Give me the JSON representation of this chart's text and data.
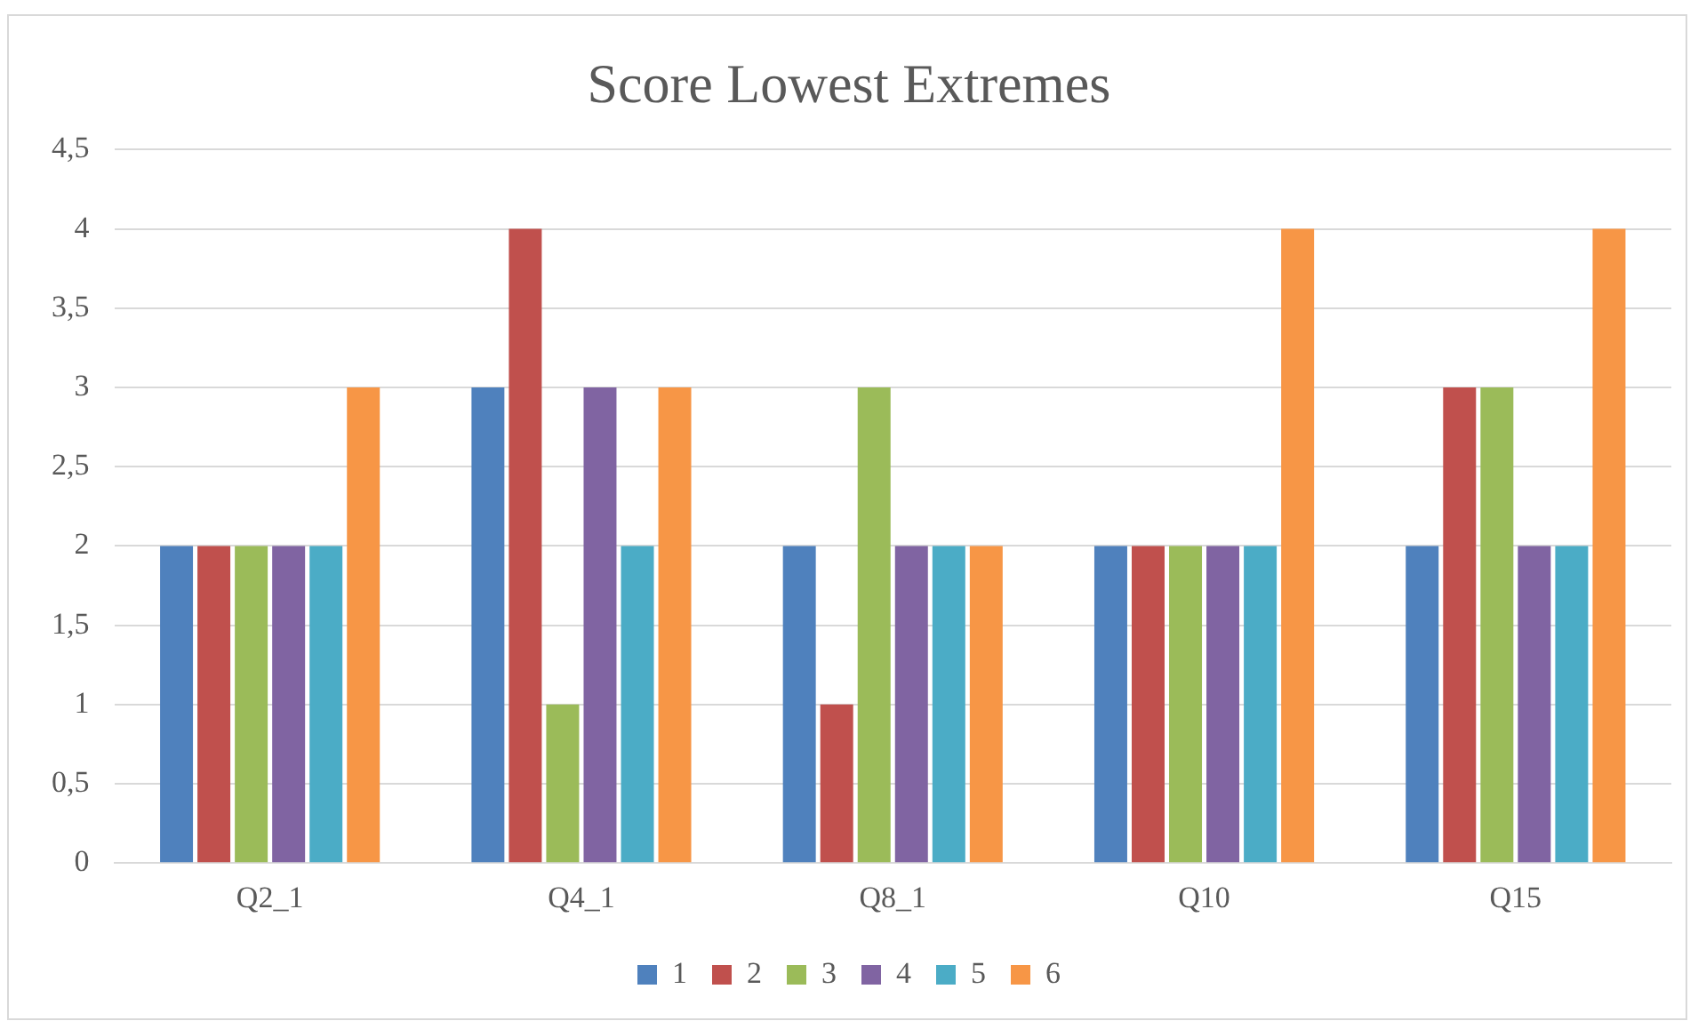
{
  "chart_data": {
    "type": "bar",
    "title": "Score Lowest Extremes",
    "categories": [
      "Q2_1",
      "Q4_1",
      "Q8_1",
      "Q10",
      "Q15"
    ],
    "series": [
      {
        "name": "1",
        "color": "#4f81bd",
        "values": [
          2,
          3,
          2,
          2,
          2
        ]
      },
      {
        "name": "2",
        "color": "#c0504d",
        "values": [
          2,
          4,
          1,
          2,
          3
        ]
      },
      {
        "name": "3",
        "color": "#9bbb59",
        "values": [
          2,
          1,
          3,
          2,
          3
        ]
      },
      {
        "name": "4",
        "color": "#8064a2",
        "values": [
          2,
          3,
          2,
          2,
          2
        ]
      },
      {
        "name": "5",
        "color": "#4bacc6",
        "values": [
          2,
          2,
          2,
          2,
          2
        ]
      },
      {
        "name": "6",
        "color": "#f79646",
        "values": [
          3,
          3,
          2,
          4,
          4
        ]
      }
    ],
    "ylim": [
      0,
      4.5
    ],
    "yticks": [
      0,
      {
        "value": 0.5,
        "label": "0,5"
      },
      1,
      {
        "value": 1.5,
        "label": "1,5"
      },
      2,
      {
        "value": 2.5,
        "label": "2,5"
      },
      3,
      {
        "value": 3.5,
        "label": "3,5"
      },
      4,
      {
        "value": 4.5,
        "label": "4,5"
      }
    ],
    "grid": "y",
    "legend": "bottom"
  }
}
